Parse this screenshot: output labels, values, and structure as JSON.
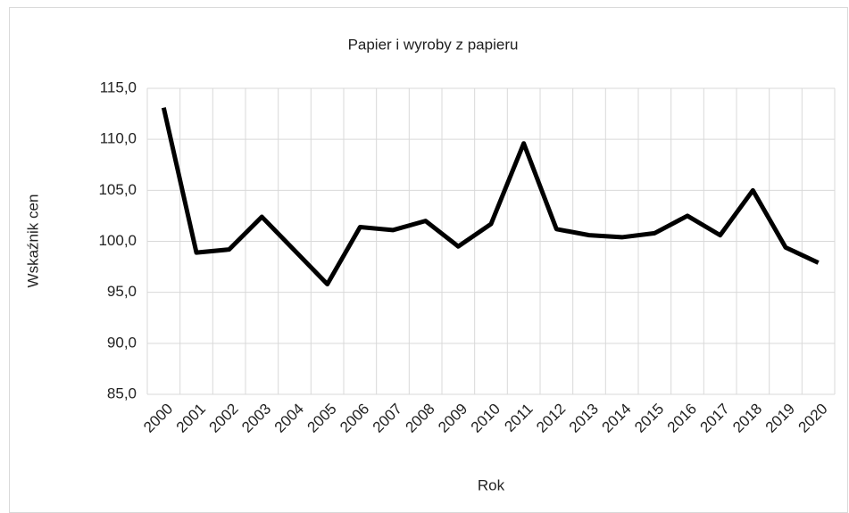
{
  "chart_data": {
    "type": "line",
    "title": "Papier i wyroby z papieru",
    "x_label": "Rok",
    "y_label": "Wskaźnik cen",
    "categories": [
      "2000",
      "2001",
      "2002",
      "2003",
      "2004",
      "2005",
      "2006",
      "2007",
      "2008",
      "2009",
      "2010",
      "2011",
      "2012",
      "2013",
      "2014",
      "2015",
      "2016",
      "2017",
      "2018",
      "2019",
      "2020"
    ],
    "series": [
      {
        "name": "Papier i wyroby z papieru",
        "color": "#000000",
        "values": [
          113.1,
          98.9,
          99.2,
          102.4,
          99.1,
          95.8,
          101.4,
          101.1,
          102.0,
          99.5,
          101.7,
          109.6,
          101.2,
          100.6,
          100.4,
          100.8,
          102.5,
          100.6,
          105.0,
          99.4,
          97.9
        ]
      }
    ],
    "ylim": [
      85,
      115
    ],
    "yticks": [
      {
        "value": 85,
        "label": "85,0"
      },
      {
        "value": 90,
        "label": "90,0"
      },
      {
        "value": 95,
        "label": "95,0"
      },
      {
        "value": 100,
        "label": "100,0"
      },
      {
        "value": 105,
        "label": "105,0"
      },
      {
        "value": 110,
        "label": "110,0"
      },
      {
        "value": 115,
        "label": "115,0"
      }
    ],
    "grid": true
  }
}
